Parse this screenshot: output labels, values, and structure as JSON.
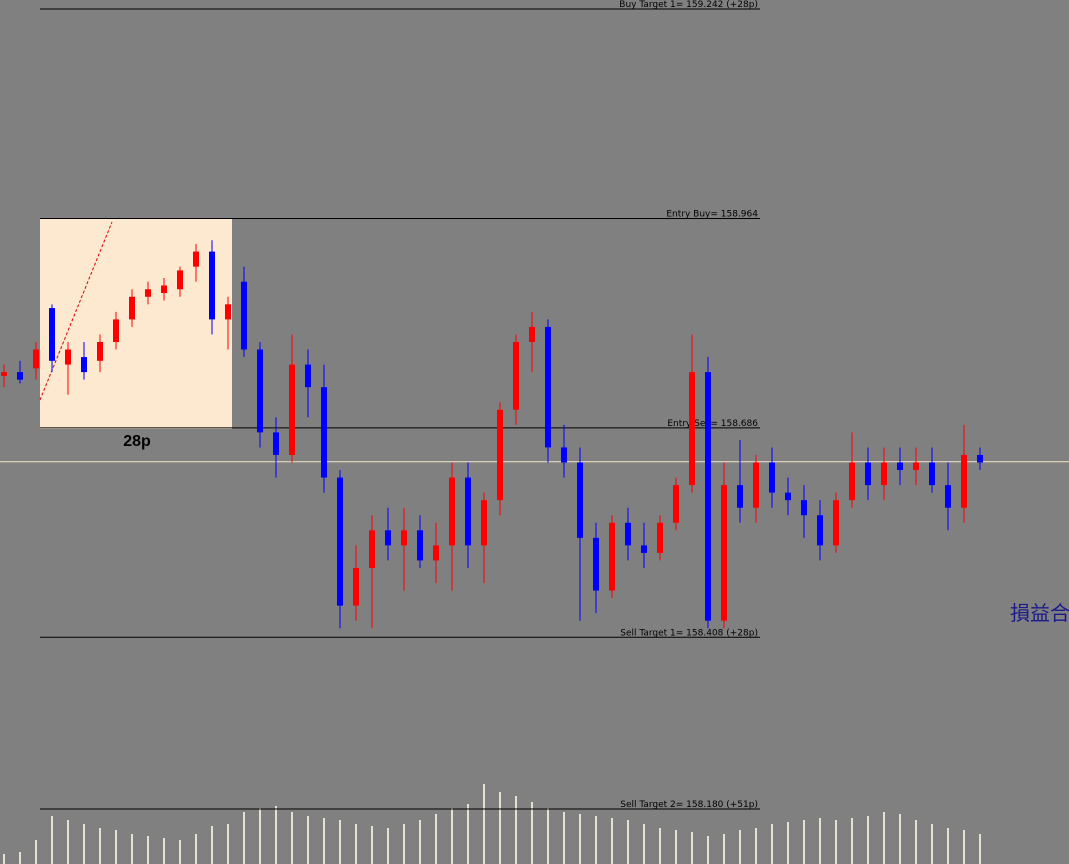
{
  "chart_data": {
    "type": "candlestick",
    "ylim": [
      158.107,
      159.254
    ],
    "up_color": "#ff0000",
    "down_color": "#0000ff",
    "open": [
      158.755,
      158.76,
      158.765,
      158.845,
      158.77,
      158.78,
      158.775,
      158.8,
      158.83,
      158.86,
      158.865,
      158.87,
      158.9,
      158.92,
      158.83,
      158.88,
      158.79,
      158.68,
      158.65,
      158.77,
      158.74,
      158.62,
      158.45,
      158.5,
      158.55,
      158.53,
      158.55,
      158.51,
      158.53,
      158.62,
      158.53,
      158.59,
      158.71,
      158.8,
      158.82,
      158.66,
      158.64,
      158.54,
      158.47,
      158.56,
      158.53,
      158.52,
      158.56,
      158.61,
      158.76,
      158.43,
      158.61,
      158.58,
      158.64,
      158.6,
      158.59,
      158.57,
      158.53,
      158.59,
      158.64,
      158.61,
      158.64,
      158.63,
      158.64,
      158.61,
      158.58,
      158.65
    ],
    "high": [
      158.77,
      158.775,
      158.8,
      158.85,
      158.8,
      158.8,
      158.81,
      158.84,
      158.87,
      158.88,
      158.885,
      158.9,
      158.93,
      158.935,
      158.86,
      158.9,
      158.8,
      158.7,
      158.81,
      158.79,
      158.77,
      158.63,
      158.53,
      158.57,
      158.58,
      158.58,
      158.57,
      158.56,
      158.64,
      158.64,
      158.6,
      158.72,
      158.81,
      158.84,
      158.83,
      158.69,
      158.66,
      158.56,
      158.57,
      158.58,
      158.56,
      158.57,
      158.62,
      158.81,
      158.78,
      158.64,
      158.67,
      158.65,
      158.66,
      158.62,
      158.61,
      158.59,
      158.6,
      158.68,
      158.66,
      158.66,
      158.66,
      158.66,
      158.66,
      158.64,
      158.69,
      158.66
    ],
    "low": [
      158.74,
      158.745,
      158.75,
      158.76,
      158.73,
      158.75,
      158.76,
      158.79,
      158.82,
      158.85,
      158.855,
      158.86,
      158.88,
      158.81,
      158.79,
      158.78,
      158.66,
      158.62,
      158.64,
      158.7,
      158.6,
      158.42,
      158.43,
      158.42,
      158.51,
      158.47,
      158.5,
      158.48,
      158.47,
      158.5,
      158.48,
      158.57,
      158.69,
      158.76,
      158.64,
      158.62,
      158.43,
      158.44,
      158.46,
      158.51,
      158.5,
      158.51,
      158.55,
      158.6,
      158.42,
      158.42,
      158.56,
      158.56,
      158.58,
      158.57,
      158.54,
      158.51,
      158.52,
      158.58,
      158.59,
      158.59,
      158.61,
      158.61,
      158.6,
      158.55,
      158.56,
      158.63
    ],
    "close": [
      158.76,
      158.75,
      158.79,
      158.775,
      158.79,
      158.76,
      158.8,
      158.83,
      158.86,
      158.87,
      158.875,
      158.895,
      158.92,
      158.83,
      158.85,
      158.79,
      158.68,
      158.65,
      158.77,
      158.74,
      158.62,
      158.45,
      158.5,
      158.55,
      158.53,
      158.55,
      158.51,
      158.53,
      158.62,
      158.53,
      158.59,
      158.71,
      158.8,
      158.82,
      158.66,
      158.64,
      158.54,
      158.47,
      158.56,
      158.53,
      158.52,
      158.56,
      158.61,
      158.76,
      158.43,
      158.61,
      158.58,
      158.64,
      158.6,
      158.59,
      158.57,
      158.53,
      158.59,
      158.64,
      158.61,
      158.64,
      158.63,
      158.64,
      158.61,
      158.58,
      158.65,
      158.64
    ],
    "volume": [
      10,
      12,
      24,
      48,
      44,
      40,
      36,
      34,
      30,
      28,
      26,
      24,
      30,
      38,
      40,
      52,
      56,
      58,
      52,
      48,
      46,
      44,
      40,
      38,
      36,
      40,
      44,
      50,
      56,
      60,
      80,
      72,
      68,
      62,
      56,
      52,
      50,
      48,
      46,
      44,
      40,
      36,
      34,
      32,
      28,
      30,
      34,
      36,
      40,
      42,
      44,
      46,
      44,
      46,
      48,
      52,
      50,
      44,
      40,
      36,
      34,
      30
    ],
    "volume_lim": [
      0,
      100
    ],
    "current_price": 158.641,
    "levels": [
      {
        "value": 159.242,
        "label": "Buy Target 1= 159.242  (+28p)"
      },
      {
        "value": 158.964,
        "label": "Entry Buy= 158.964"
      },
      {
        "value": 158.686,
        "label": "Entry Sell= 158.686"
      },
      {
        "value": 158.408,
        "label": "Sell Target 1= 158.408  (+28p)"
      },
      {
        "value": 158.18,
        "label": "Sell Target 2= 158.180  (+51p)"
      }
    ],
    "range_label": "28p",
    "side_text": "損益合"
  }
}
